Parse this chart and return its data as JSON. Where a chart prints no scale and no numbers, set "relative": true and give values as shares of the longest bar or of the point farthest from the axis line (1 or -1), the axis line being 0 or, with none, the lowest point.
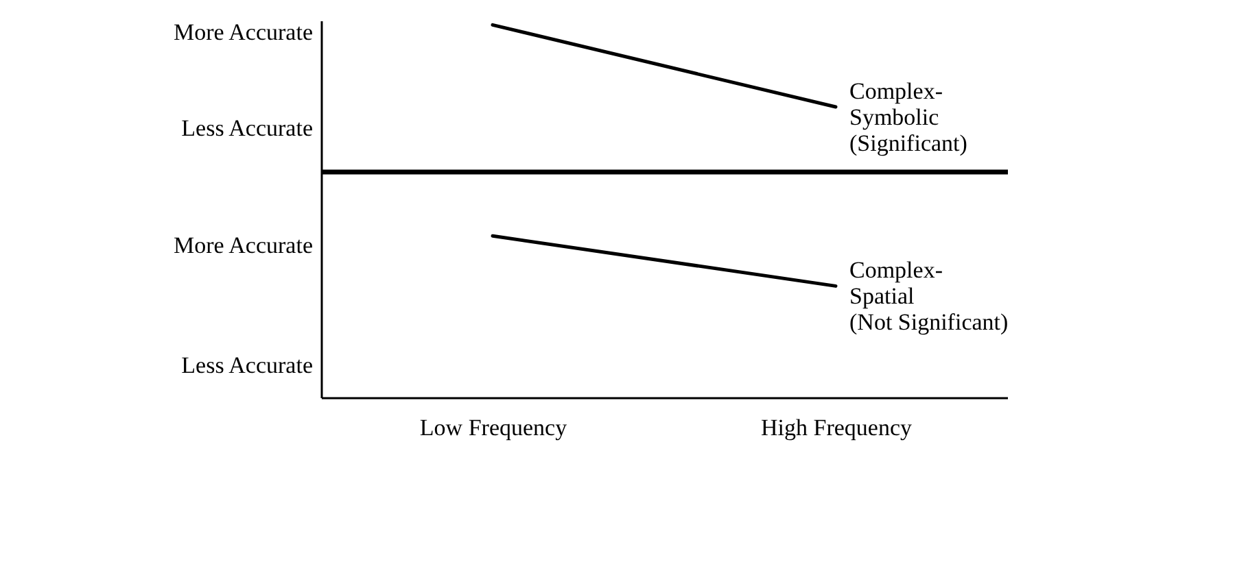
{
  "chart_data": [
    {
      "type": "line",
      "categories": [
        null,
        null
      ],
      "series": [
        {
          "name": "Complex-Symbolic (Significant)",
          "color": "#000000",
          "values": [
            1,
            0.44
          ]
        }
      ],
      "relative": true,
      "annotations": [
        "More Accurate",
        "Less Accurate"
      ],
      "tick_labels": false,
      "marker": "none",
      "line_style": "solid"
    },
    {
      "type": "line",
      "categories": [
        "Low Frequency",
        "High Frequency"
      ],
      "series": [
        {
          "name": "Complex-Spatial (Not Significant)",
          "color": "#000000",
          "values": [
            1,
            0.69
          ]
        }
      ],
      "relative": true,
      "annotations": [
        "More Accurate",
        "Less Accurate"
      ],
      "tick_labels": "x",
      "marker": "none",
      "line_style": "solid"
    }
  ]
}
